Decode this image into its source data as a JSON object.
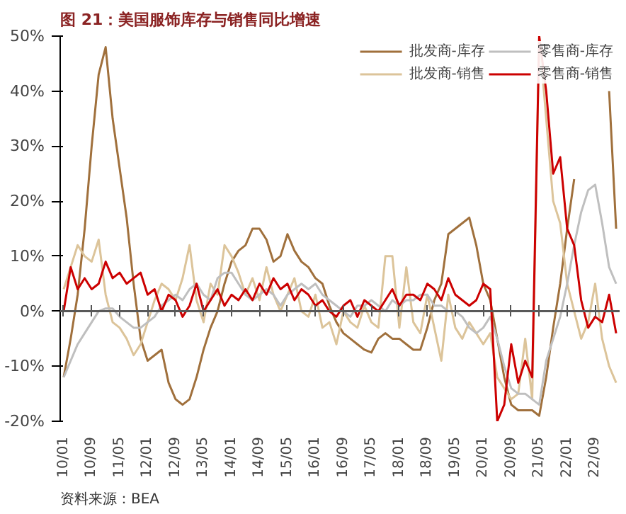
{
  "chart_data": {
    "type": "line",
    "title": "图 21：美国服饰库存与销售同比增速",
    "annotations": [
      "资料来源：BEA"
    ],
    "categories": [
      "10/01",
      null,
      null,
      null,
      "10/09",
      null,
      null,
      null,
      "11/05",
      null,
      null,
      null,
      "12/01",
      null,
      null,
      null,
      "12/09",
      null,
      null,
      null,
      "13/05",
      null,
      null,
      null,
      "14/01",
      null,
      null,
      null,
      "14/09",
      null,
      null,
      null,
      "15/05",
      null,
      null,
      null,
      "16/01",
      null,
      null,
      null,
      "16/09",
      null,
      null,
      null,
      "17/05",
      null,
      null,
      null,
      "18/01",
      null,
      null,
      null,
      "18/09",
      null,
      null,
      null,
      "19/05",
      null,
      null,
      null,
      "20/01",
      null,
      null,
      null,
      "20/09",
      null,
      null,
      null,
      "21/05",
      null,
      null,
      null,
      "22/01",
      null,
      null,
      null,
      "22/09",
      null,
      null,
      null
    ],
    "series": [
      {
        "name": "批发商-库存",
        "color": "#a0703c",
        "values": [
          -12,
          -5,
          3,
          15,
          30,
          43,
          48,
          35,
          26,
          17,
          5,
          -5,
          -9,
          -8,
          -7,
          -13,
          -16,
          -17,
          -16,
          -12,
          -7,
          -3,
          0,
          5,
          9,
          11,
          12,
          15,
          15,
          13,
          9,
          10,
          14,
          11,
          9,
          8,
          6,
          5,
          1,
          -2,
          -4,
          -5,
          -6,
          -7,
          -7.5,
          -5,
          -4,
          -5,
          -5,
          -6,
          -7,
          -7,
          -3,
          2,
          5,
          14,
          15,
          16,
          17,
          12,
          5,
          2,
          -5,
          -12,
          -17,
          -18,
          -18,
          -18,
          -19,
          -12,
          -3,
          5,
          15,
          24,
          null,
          null,
          null,
          null,
          40,
          15
        ]
      },
      {
        "name": "批发商-销售",
        "color": "#dcc49a",
        "values": [
          4,
          8,
          12,
          10,
          9,
          13,
          3,
          -2,
          -3,
          -5,
          -8,
          -6,
          -2,
          2,
          5,
          4,
          2,
          6,
          12,
          2,
          -2,
          5,
          3,
          12,
          10,
          7,
          3,
          6,
          2,
          8,
          3,
          0,
          3,
          6,
          0,
          -1,
          3,
          -3,
          -2,
          -6,
          0,
          -2,
          -3,
          1,
          -2,
          -3,
          10,
          10,
          -3,
          8,
          -2,
          -4,
          3,
          -3,
          -9,
          3,
          -3,
          -5,
          -2,
          -4,
          -6,
          -4,
          -12,
          -14,
          -16,
          -15,
          -5,
          -16,
          50,
          35,
          20,
          16,
          5,
          0,
          -5,
          -2,
          5,
          -5,
          -10,
          -13
        ]
      },
      {
        "name": "零售商-库存",
        "color": "#bfbfbf",
        "values": [
          -12,
          -9,
          -6,
          -4,
          -2,
          0,
          0.5,
          0.5,
          -1,
          -2,
          -3,
          -3,
          -2,
          -1,
          1,
          2,
          3,
          2,
          4,
          5,
          3,
          2,
          6,
          7,
          7,
          5,
          3,
          2,
          3,
          4,
          3,
          1,
          3,
          4,
          5,
          4,
          5,
          3,
          2,
          1,
          0,
          -1,
          1,
          1,
          2,
          1,
          0,
          2,
          1,
          2,
          2,
          3,
          3,
          1,
          1,
          0,
          0,
          -1,
          -3,
          -4,
          -3,
          -1,
          -5,
          -10,
          -14,
          -15,
          -15,
          -16,
          -17,
          -9,
          -5,
          -1,
          5,
          12,
          18,
          22,
          23,
          16,
          8,
          5
        ]
      },
      {
        "name": "零售商-销售",
        "color": "#cc0000",
        "values": [
          0,
          8,
          4,
          6,
          4,
          5,
          9,
          6,
          7,
          5,
          6,
          7,
          3,
          4,
          0,
          3,
          2,
          -1,
          1,
          5,
          0,
          2,
          4,
          1,
          3,
          2,
          4,
          2,
          5,
          3,
          6,
          4,
          5,
          2,
          4,
          3,
          1,
          2,
          0,
          -1,
          1,
          2,
          -1,
          2,
          1,
          0,
          2,
          4,
          1,
          3,
          3,
          2,
          5,
          4,
          2,
          6,
          3,
          2,
          1,
          2,
          5,
          4,
          -20,
          -17,
          -6,
          -13,
          -9,
          -12,
          50,
          40,
          25,
          28,
          15,
          12,
          2,
          -3,
          -1,
          -2,
          3,
          -4
        ]
      }
    ],
    "ylim": [
      -20,
      50
    ],
    "yticks": [
      {
        "value": -20,
        "label": "-20%"
      },
      {
        "value": -10,
        "label": "-10%"
      },
      {
        "value": 0,
        "label": "0%"
      },
      {
        "value": 10,
        "label": "10%"
      },
      {
        "value": 20,
        "label": "20%"
      },
      {
        "value": 30,
        "label": "30%"
      },
      {
        "value": 40,
        "label": "40%"
      },
      {
        "value": 50,
        "label": "50%"
      }
    ],
    "grid": false,
    "ref_lines": [
      {
        "axis": "y",
        "value": 0,
        "color": "#595959"
      }
    ],
    "legend": "top",
    "marker": "none",
    "line_style": "solid"
  }
}
